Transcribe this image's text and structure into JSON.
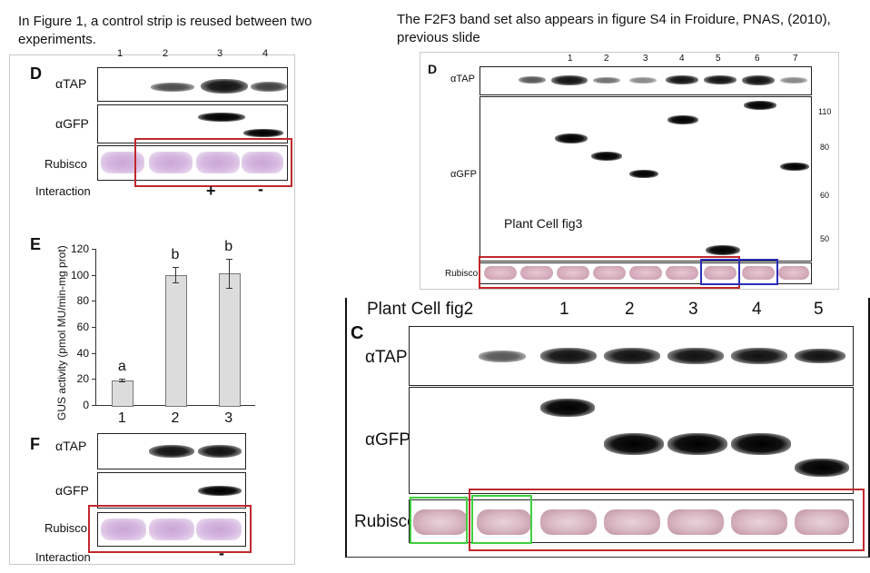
{
  "captions": {
    "left": "In Figure 1, a control strip is reused between two experiments.",
    "right": "The F2F3 band set also appears in figure S4 in Froidure, PNAS, (2010), previous slide"
  },
  "left_figure": {
    "panel_d": {
      "letter": "D",
      "lane_numbers": [
        "1",
        "2",
        "3",
        "4"
      ],
      "row_tap": "αTAP",
      "row_gfp": "αGFP",
      "row_rubisco": "Rubisco",
      "row_interaction": "Interaction",
      "interaction_values": [
        "+",
        "-"
      ]
    },
    "panel_e": {
      "letter": "E",
      "y_axis_label": "GUS activity (pmol MU/min-mg prot)"
    },
    "panel_f": {
      "letter": "F",
      "row_tap": "αTAP",
      "row_gfp": "αGFP",
      "row_rubisco": "Rubisco",
      "row_interaction": "Interaction",
      "interaction_value": "-"
    }
  },
  "chart_data": {
    "type": "bar",
    "categories": [
      "1",
      "2",
      "3"
    ],
    "values": [
      19,
      100,
      101
    ],
    "errors": [
      1,
      6,
      11
    ],
    "letters": [
      "a",
      "b",
      "b"
    ],
    "ylabel": "GUS activity (pmol MU/min-mg prot)",
    "xlabel": "",
    "ylim": [
      0,
      120
    ],
    "yticks": [
      0,
      20,
      40,
      60,
      80,
      100,
      120
    ],
    "grid": false
  },
  "fig3": {
    "letter": "D",
    "lane_numbers": [
      "1",
      "2",
      "3",
      "4",
      "5",
      "6",
      "7"
    ],
    "row_tap": "αTAP",
    "row_gfp": "αGFP",
    "row_rubisco": "Rubisco",
    "overlay_label": "Plant Cell fig3",
    "mw_markers": [
      "110",
      "80",
      "60",
      "50"
    ]
  },
  "fig2": {
    "title": "Plant Cell fig2",
    "letter": "C",
    "lane_numbers": [
      "1",
      "2",
      "3",
      "4",
      "5"
    ],
    "row_tap": "αTAP",
    "row_gfp": "αGFP",
    "row_rubisco": "Rubisco"
  },
  "colors": {
    "red_box": "#c0282d",
    "blue_box": "#2b2fb8",
    "green_box": "#3fcf3f",
    "rubisco_purple": "#c9a6d6",
    "rubisco_pink": "#d7aebd"
  }
}
